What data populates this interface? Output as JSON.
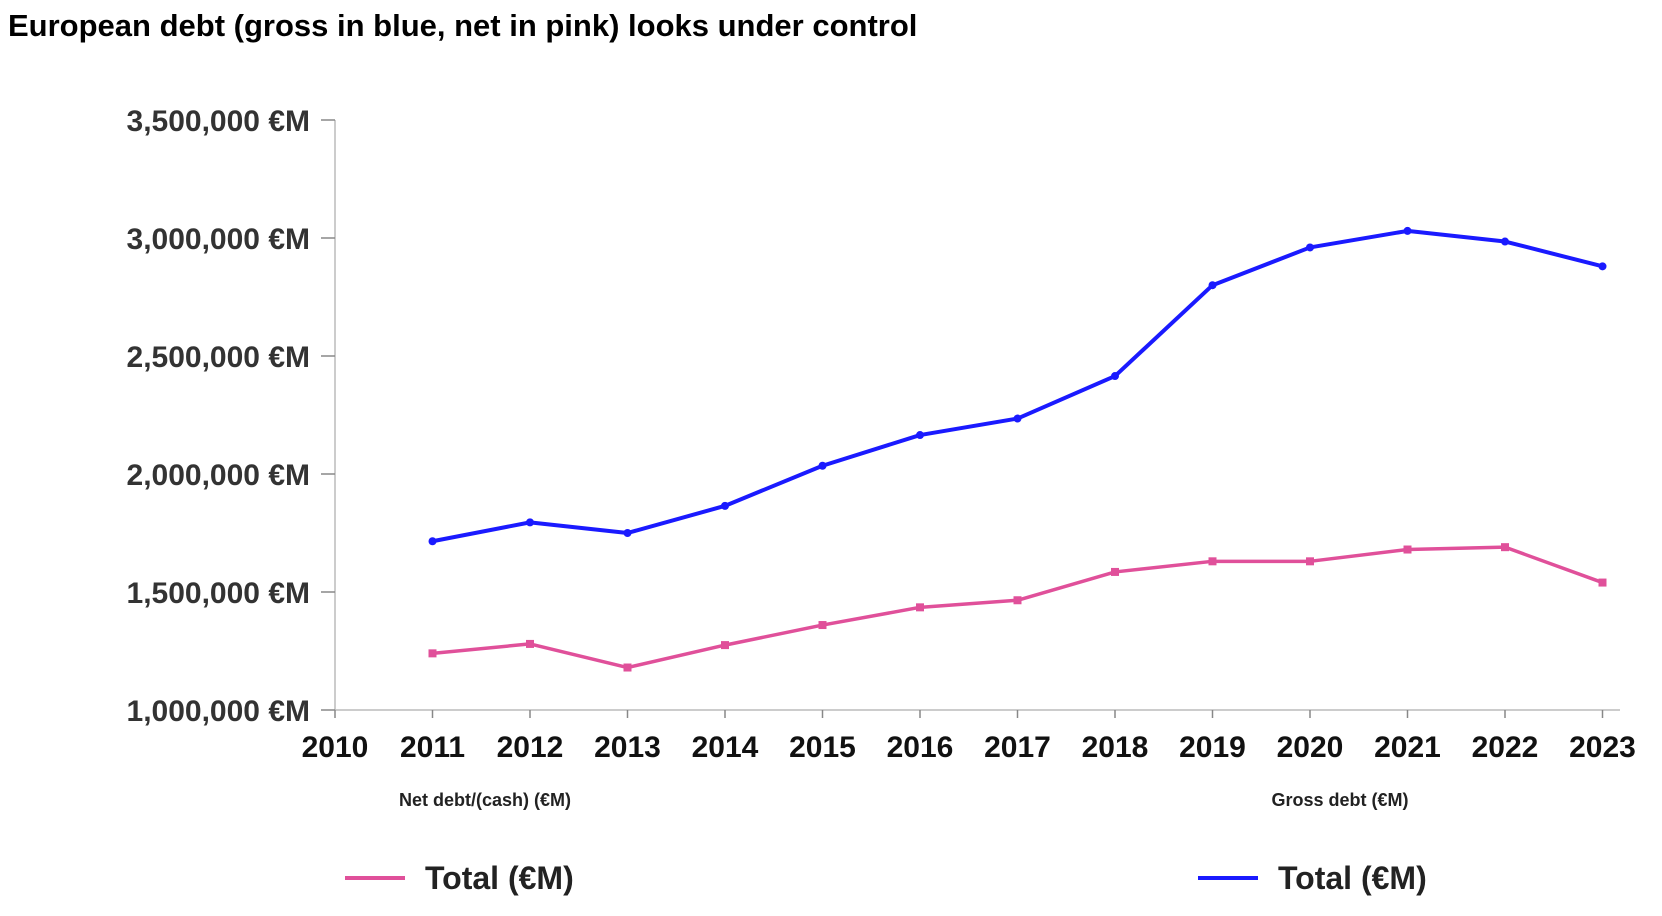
{
  "title": "European debt (gross in blue, net in pink) looks under control",
  "chart_data": {
    "type": "line",
    "title": "European debt (gross in blue, net in pink) looks under control",
    "x": [
      "2010",
      "2011",
      "2012",
      "2013",
      "2014",
      "2015",
      "2016",
      "2017",
      "2018",
      "2019",
      "2020",
      "2021",
      "2022",
      "2023"
    ],
    "ylim": [
      1000000,
      3500000
    ],
    "yticks": [
      "3,500,000 €M",
      "3,000,000 €M",
      "2,500,000 €M",
      "2,000,000 €M",
      "1,500,000 €M",
      "1,000,000 €M"
    ],
    "ytick_values": [
      3500000,
      3000000,
      2500000,
      2000000,
      1500000,
      1000000
    ],
    "grid": false,
    "series": [
      {
        "group": "Net debt/(cash) (€M)",
        "name": "Total (€M)",
        "color": "#e0509a",
        "x": [
          "2011",
          "2012",
          "2013",
          "2014",
          "2015",
          "2016",
          "2017",
          "2018",
          "2019",
          "2020",
          "2021",
          "2022",
          "2023"
        ],
        "values": [
          1240000,
          1280000,
          1180000,
          1275000,
          1360000,
          1435000,
          1465000,
          1585000,
          1630000,
          1630000,
          1680000,
          1690000,
          1540000
        ]
      },
      {
        "group": "Gross debt (€M)",
        "name": "Total (€M)",
        "color": "#1a1aff",
        "x": [
          "2011",
          "2012",
          "2013",
          "2014",
          "2015",
          "2016",
          "2017",
          "2018",
          "2019",
          "2020",
          "2021",
          "2022",
          "2023"
        ],
        "values": [
          1715000,
          1795000,
          1750000,
          1865000,
          2035000,
          2165000,
          2235000,
          2415000,
          2800000,
          2960000,
          3030000,
          2985000,
          2880000
        ]
      }
    ],
    "legend": {
      "placement": "bottom",
      "groups": [
        "Net debt/(cash) (€M)",
        "Gross debt (€M)"
      ]
    }
  }
}
